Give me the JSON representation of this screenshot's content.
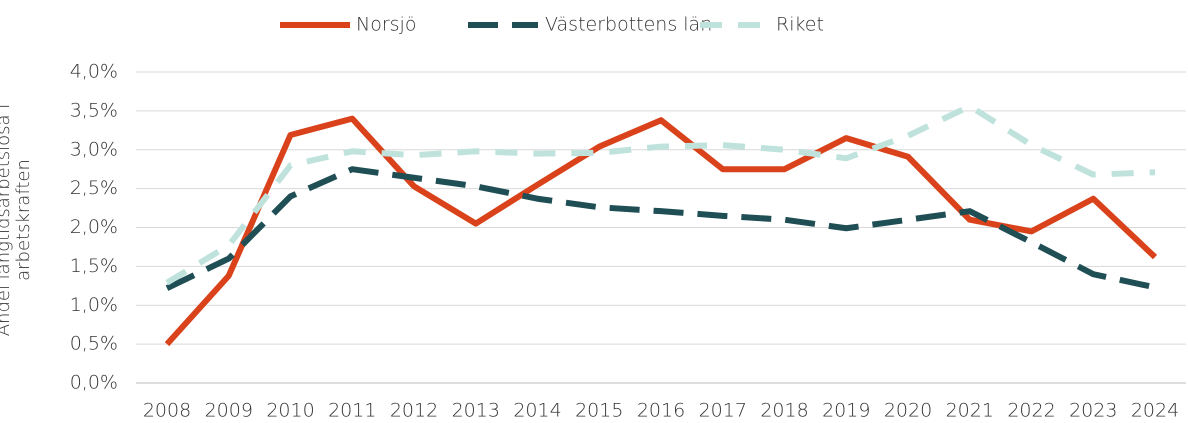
{
  "chart_data": {
    "type": "line",
    "ylabel": "Andel långtidsarbetslösa i arbetskraften",
    "categories": [
      "2008",
      "2009",
      "2010",
      "2011",
      "2012",
      "2013",
      "2014",
      "2015",
      "2016",
      "2017",
      "2018",
      "2019",
      "2020",
      "2021",
      "2022",
      "2023",
      "2024"
    ],
    "series": [
      {
        "name": "Norsjö",
        "color": "#d9421a",
        "line_style": "solid",
        "values": [
          0.5,
          1.38,
          3.19,
          3.4,
          2.53,
          2.05,
          2.55,
          3.04,
          3.38,
          2.75,
          2.75,
          3.15,
          2.91,
          2.1,
          1.95,
          2.37,
          1.62
        ]
      },
      {
        "name": "Västerbottens län",
        "color": "#1f4e55",
        "line_style": "long-dash",
        "values": [
          1.22,
          1.6,
          2.4,
          2.75,
          2.64,
          2.53,
          2.37,
          2.26,
          2.21,
          2.15,
          2.1,
          1.99,
          2.1,
          2.21,
          1.81,
          1.4,
          1.23
        ]
      },
      {
        "name": "Riket",
        "color": "#bfe3dc",
        "line_style": "dash",
        "values": [
          1.29,
          1.77,
          2.8,
          2.98,
          2.93,
          2.98,
          2.95,
          2.96,
          3.04,
          3.06,
          3.0,
          2.89,
          3.18,
          3.56,
          3.06,
          2.68,
          2.71
        ]
      }
    ],
    "ylim": [
      0,
      4
    ],
    "yticks": [
      {
        "value": 0,
        "label": "0,0%"
      },
      {
        "value": 0.5,
        "label": "0,5%"
      },
      {
        "value": 1,
        "label": "1,0%"
      },
      {
        "value": 1.5,
        "label": "1,5%"
      },
      {
        "value": 2,
        "label": "2,0%"
      },
      {
        "value": 2.5,
        "label": "2,5%"
      },
      {
        "value": 3,
        "label": "3,0%"
      },
      {
        "value": 3.5,
        "label": "3,5%"
      },
      {
        "value": 4,
        "label": "4,0%"
      }
    ],
    "grid": true,
    "legend": "top"
  }
}
